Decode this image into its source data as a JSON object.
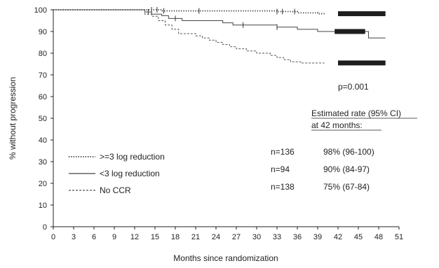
{
  "chart_data": {
    "type": "line",
    "subtype": "kaplan-meier",
    "title": "",
    "xlabel": "Months since randomization",
    "ylabel": "% without progression",
    "xlim": [
      0,
      51
    ],
    "ylim": [
      0,
      100
    ],
    "xticks": [
      0,
      3,
      6,
      9,
      12,
      15,
      18,
      21,
      24,
      27,
      30,
      33,
      36,
      39,
      42,
      45,
      48,
      51
    ],
    "yticks": [
      0,
      10,
      20,
      30,
      40,
      50,
      60,
      70,
      80,
      90,
      100
    ],
    "grid": false,
    "legend_position": "bottom-left",
    "p_value_label": "p=0.001",
    "rate_header_line1": "Estimated rate (95% CI)",
    "rate_header_line2": "at 42 months:",
    "series": [
      {
        "name": ">=3 log reduction",
        "style": "dotted",
        "n_label": "n=136",
        "rate_label": "98% (96-100)",
        "steps": [
          [
            0,
            100
          ],
          [
            14,
            100
          ],
          [
            16,
            99.5
          ],
          [
            23,
            99.5
          ],
          [
            33,
            99.2
          ],
          [
            36,
            98.6
          ],
          [
            39,
            98.2
          ],
          [
            40,
            98.2
          ]
        ],
        "censor_start": 42,
        "censor_end": 49,
        "censor_y": 98.2,
        "early_censors": [
          14.5,
          15.3,
          16.3,
          21.5,
          33,
          33.8,
          35.6
        ]
      },
      {
        "name": "<3 log reduction",
        "style": "solid",
        "n_label": "n=94",
        "rate_label": "90%  (84-97)",
        "steps": [
          [
            0,
            100
          ],
          [
            12,
            100
          ],
          [
            13.5,
            99
          ],
          [
            14.5,
            98
          ],
          [
            16,
            97.3
          ],
          [
            17,
            96
          ],
          [
            19,
            95
          ],
          [
            25,
            94
          ],
          [
            26.5,
            93
          ],
          [
            33,
            92
          ],
          [
            36,
            91
          ],
          [
            39,
            90
          ],
          [
            40,
            90
          ],
          [
            46.5,
            87
          ],
          [
            49,
            87
          ]
        ],
        "censor_start": 41.5,
        "censor_end": 46,
        "censor_y": 90,
        "early_censors": [
          14,
          18,
          28,
          33
        ]
      },
      {
        "name": "No CCR",
        "style": "dashed",
        "n_label": "n=138",
        "rate_label": "75%  (67-84)",
        "steps": [
          [
            0,
            100
          ],
          [
            12,
            100
          ],
          [
            13.5,
            98
          ],
          [
            14.5,
            97
          ],
          [
            15.5,
            95
          ],
          [
            16.5,
            93
          ],
          [
            17.5,
            91
          ],
          [
            18.5,
            89
          ],
          [
            21,
            88
          ],
          [
            22,
            87
          ],
          [
            23,
            86
          ],
          [
            24,
            85
          ],
          [
            25,
            84
          ],
          [
            26,
            83
          ],
          [
            27,
            82
          ],
          [
            28.5,
            81
          ],
          [
            30,
            80
          ],
          [
            32,
            79
          ],
          [
            33,
            78
          ],
          [
            34,
            77
          ],
          [
            35,
            76
          ],
          [
            36.5,
            75.5
          ],
          [
            40,
            75.5
          ]
        ],
        "censor_start": 42,
        "censor_end": 49,
        "censor_y": 75.5,
        "early_censors": []
      }
    ]
  }
}
